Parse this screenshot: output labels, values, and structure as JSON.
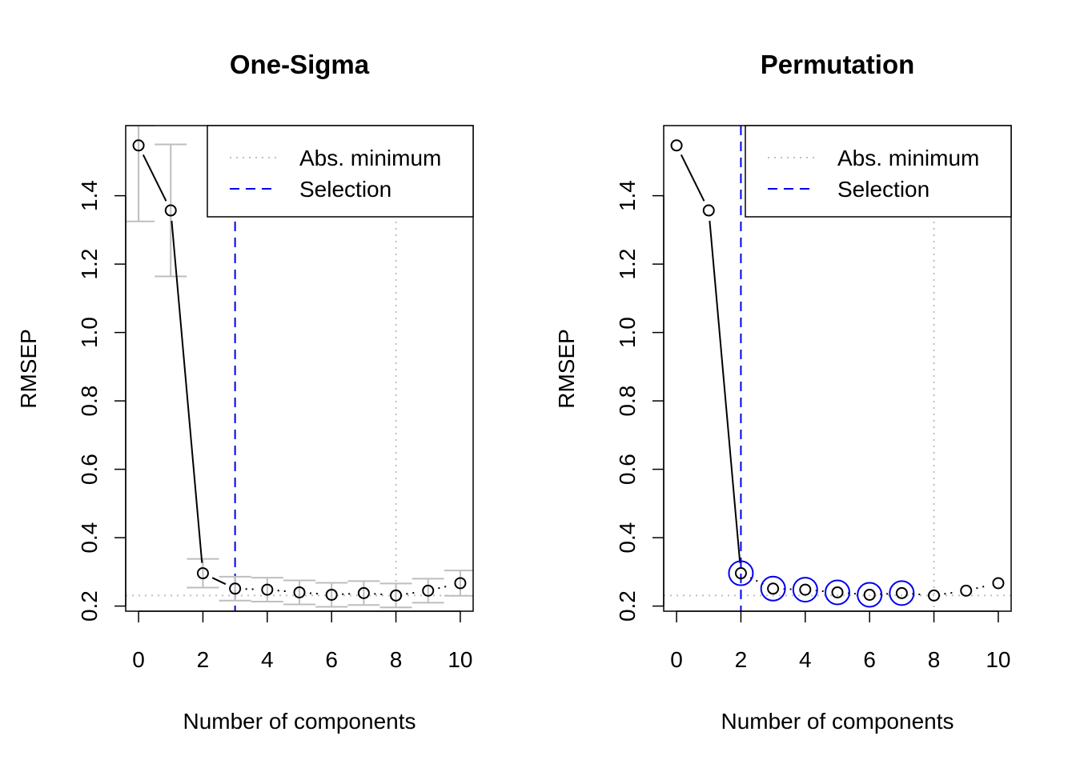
{
  "chart_data": [
    {
      "type": "scatter",
      "title": "One-Sigma",
      "xlabel": "Number of components",
      "ylabel": "RMSEP",
      "xlim": [
        -0.4,
        10.4
      ],
      "ylim": [
        0.185,
        1.605
      ],
      "xticks": [
        0,
        2,
        4,
        6,
        8,
        10
      ],
      "xtick_labels": [
        "0",
        "2",
        "4",
        "6",
        "8",
        "10"
      ],
      "yticks": [
        0.2,
        0.4,
        0.6,
        0.8,
        1.0,
        1.2,
        1.4
      ],
      "ytick_labels": [
        "0.2",
        "0.4",
        "0.6",
        "0.8",
        "1.0",
        "1.2",
        "1.4"
      ],
      "x": [
        0,
        1,
        2,
        3,
        4,
        5,
        6,
        7,
        8,
        9,
        10
      ],
      "y": [
        1.547,
        1.357,
        0.296,
        0.251,
        0.248,
        0.24,
        0.233,
        0.238,
        0.231,
        0.245,
        0.267
      ],
      "error_low": [
        1.325,
        1.164,
        0.254,
        0.216,
        0.213,
        0.205,
        0.198,
        0.203,
        0.196,
        0.21,
        0.23
      ],
      "error_high": [
        1.605,
        1.55,
        0.338,
        0.286,
        0.283,
        0.275,
        0.268,
        0.273,
        0.266,
        0.28,
        0.304
      ],
      "selection_x": 3,
      "abs_min_x": 8,
      "abs_min_y": 0.231,
      "highlighted_x": [],
      "legend": {
        "position": "top-right",
        "entries": [
          "Abs. minimum",
          "Selection"
        ],
        "styles": [
          "dotted",
          "dashed"
        ]
      },
      "colors": {
        "points": "#000000",
        "error_bars": "#bebebe",
        "abs_min_line": "#bebebe",
        "selection_line": "#0000ee",
        "highlight_circle": "#0000ee"
      }
    },
    {
      "type": "scatter",
      "title": "Permutation",
      "xlabel": "Number of components",
      "ylabel": "RMSEP",
      "xlim": [
        -0.4,
        10.4
      ],
      "ylim": [
        0.185,
        1.605
      ],
      "xticks": [
        0,
        2,
        4,
        6,
        8,
        10
      ],
      "xtick_labels": [
        "0",
        "2",
        "4",
        "6",
        "8",
        "10"
      ],
      "yticks": [
        0.2,
        0.4,
        0.6,
        0.8,
        1.0,
        1.2,
        1.4
      ],
      "ytick_labels": [
        "0.2",
        "0.4",
        "0.6",
        "0.8",
        "1.0",
        "1.2",
        "1.4"
      ],
      "x": [
        0,
        1,
        2,
        3,
        4,
        5,
        6,
        7,
        8,
        9,
        10
      ],
      "y": [
        1.547,
        1.357,
        0.296,
        0.251,
        0.248,
        0.24,
        0.233,
        0.238,
        0.231,
        0.245,
        0.267
      ],
      "error_low": [],
      "error_high": [],
      "selection_x": 2,
      "abs_min_x": 8,
      "abs_min_y": 0.231,
      "highlighted_x": [
        2,
        3,
        4,
        5,
        6,
        7
      ],
      "legend": {
        "position": "top-right",
        "entries": [
          "Abs. minimum",
          "Selection"
        ],
        "styles": [
          "dotted",
          "dashed"
        ]
      },
      "colors": {
        "points": "#000000",
        "error_bars": "#bebebe",
        "abs_min_line": "#bebebe",
        "selection_line": "#0000ee",
        "highlight_circle": "#0000ee"
      }
    }
  ]
}
